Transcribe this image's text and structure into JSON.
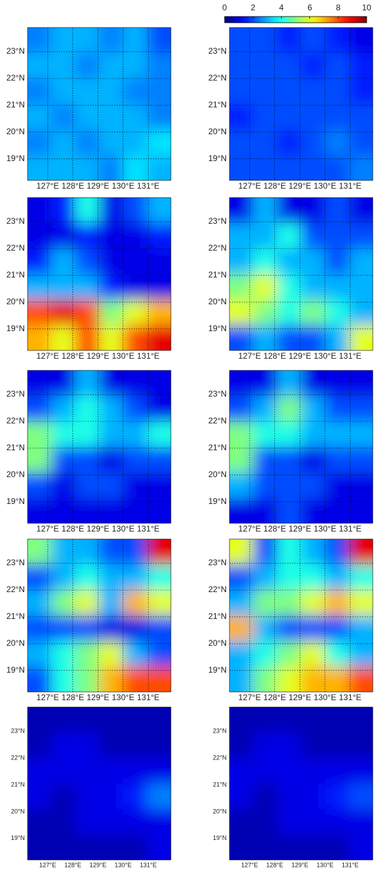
{
  "chart_data": {
    "type": "heatmap",
    "colorbar": {
      "lim": [
        0,
        10
      ],
      "ticks": [
        0,
        2,
        4,
        6,
        8,
        10
      ]
    },
    "xlim": [
      126.2,
      131.9
    ],
    "ylim": [
      18.2,
      23.9
    ],
    "xticks": [
      {
        "value": 127,
        "label": "127°E"
      },
      {
        "value": 128,
        "label": "128°E"
      },
      {
        "value": 129,
        "label": "129°E"
      },
      {
        "value": 130,
        "label": "130°E"
      },
      {
        "value": 131,
        "label": "131°E"
      }
    ],
    "yticks": [
      {
        "value": 19,
        "label": "19°N"
      },
      {
        "value": 20,
        "label": "20°N"
      },
      {
        "value": 21,
        "label": "21°N"
      },
      {
        "value": 22,
        "label": "22°N"
      },
      {
        "value": 23,
        "label": "23°N"
      }
    ],
    "grid": true,
    "panels": [
      {
        "field": [
          [
            2.5,
            3,
            3,
            2.5,
            3,
            2
          ],
          [
            3,
            3,
            2.5,
            3,
            3,
            2.5
          ],
          [
            2.5,
            3,
            3,
            3,
            2.5,
            2.5
          ],
          [
            3,
            2.5,
            3,
            3,
            3,
            2.5
          ],
          [
            2.5,
            3,
            2.5,
            3,
            3,
            3.5
          ],
          [
            3,
            3,
            3,
            2.5,
            3.5,
            3
          ]
        ]
      },
      {
        "field": [
          [
            2,
            2,
            1.5,
            2,
            1.5,
            1
          ],
          [
            2,
            2,
            2,
            1.5,
            2,
            1.5
          ],
          [
            2,
            2,
            2,
            2,
            2,
            1.5
          ],
          [
            1.5,
            2,
            2,
            2,
            2,
            2
          ],
          [
            2,
            2,
            1.5,
            2,
            2.5,
            2
          ],
          [
            2,
            2,
            2,
            2,
            2,
            2.5
          ]
        ]
      },
      {
        "field": [
          [
            1,
            1.5,
            4,
            1,
            2,
            3
          ],
          [
            1,
            1,
            1.5,
            1,
            1,
            1.5
          ],
          [
            1.5,
            3,
            2,
            1,
            1,
            1
          ],
          [
            3,
            3,
            3,
            1.5,
            1,
            1
          ],
          [
            8,
            9,
            8,
            5,
            6,
            7
          ],
          [
            7,
            6,
            8,
            6,
            8,
            9
          ]
        ]
      },
      {
        "field": [
          [
            1,
            3,
            1,
            1,
            2,
            1
          ],
          [
            3,
            3,
            4,
            2,
            2,
            2
          ],
          [
            3,
            4,
            3,
            3,
            2,
            3
          ],
          [
            5,
            6,
            4,
            3,
            3,
            3
          ],
          [
            6,
            5,
            4,
            5,
            4,
            3
          ],
          [
            2,
            3,
            2,
            2,
            3,
            6
          ]
        ]
      },
      {
        "field": [
          [
            1,
            1,
            3,
            1,
            1,
            1
          ],
          [
            2,
            3,
            4,
            3,
            2,
            1
          ],
          [
            5,
            4,
            4,
            3,
            3,
            4
          ],
          [
            5,
            2,
            2,
            1,
            2,
            2
          ],
          [
            2,
            1,
            2,
            2,
            1,
            1
          ],
          [
            1,
            1,
            1,
            1,
            1,
            1
          ]
        ]
      },
      {
        "field": [
          [
            1,
            1,
            3,
            1,
            1,
            1
          ],
          [
            2,
            3,
            5,
            3,
            2,
            2
          ],
          [
            5,
            4,
            4,
            3,
            3,
            3
          ],
          [
            5,
            2,
            2,
            1,
            2,
            2
          ],
          [
            3,
            2,
            2,
            2,
            1,
            1
          ],
          [
            1,
            1,
            2,
            1,
            1,
            1
          ]
        ]
      },
      {
        "field": [
          [
            5,
            3,
            3,
            2,
            2,
            9
          ],
          [
            2,
            3,
            4,
            3,
            3,
            4
          ],
          [
            3,
            5,
            6,
            3,
            7,
            6
          ],
          [
            2,
            2,
            2,
            1,
            1,
            2
          ],
          [
            3,
            4,
            5,
            6,
            3,
            2
          ],
          [
            2,
            4,
            5,
            7,
            8,
            8
          ]
        ]
      },
      {
        "field": [
          [
            6,
            2,
            4,
            3,
            2,
            9
          ],
          [
            2,
            3,
            4,
            4,
            3,
            4
          ],
          [
            3,
            5,
            5,
            6,
            7,
            6
          ],
          [
            7,
            3,
            2,
            2,
            2,
            3
          ],
          [
            3,
            4,
            5,
            6,
            4,
            3
          ],
          [
            3,
            5,
            6,
            7,
            7,
            8
          ]
        ]
      },
      {
        "field": [
          [
            0.5,
            0.5,
            0.5,
            0.5,
            0.5,
            0.5
          ],
          [
            0.5,
            1,
            1,
            0.5,
            0.5,
            0.5
          ],
          [
            1,
            1,
            1,
            1,
            1,
            1
          ],
          [
            1,
            0.5,
            1,
            1,
            1.5,
            2.5
          ],
          [
            0.5,
            0.5,
            1,
            1,
            1,
            1
          ],
          [
            0.5,
            0.5,
            0.5,
            0.5,
            0.5,
            1
          ]
        ]
      },
      {
        "field": [
          [
            0.5,
            0.5,
            0.5,
            0.5,
            0.5,
            0.5
          ],
          [
            0.5,
            1,
            1,
            0.5,
            0.5,
            0.5
          ],
          [
            1,
            1,
            1,
            1,
            1,
            1
          ],
          [
            1,
            0.5,
            1,
            1,
            1.5,
            2
          ],
          [
            0.5,
            0.5,
            1,
            1,
            1,
            1
          ],
          [
            0.5,
            0.5,
            0.5,
            0.5,
            0.5,
            1
          ]
        ]
      }
    ]
  }
}
